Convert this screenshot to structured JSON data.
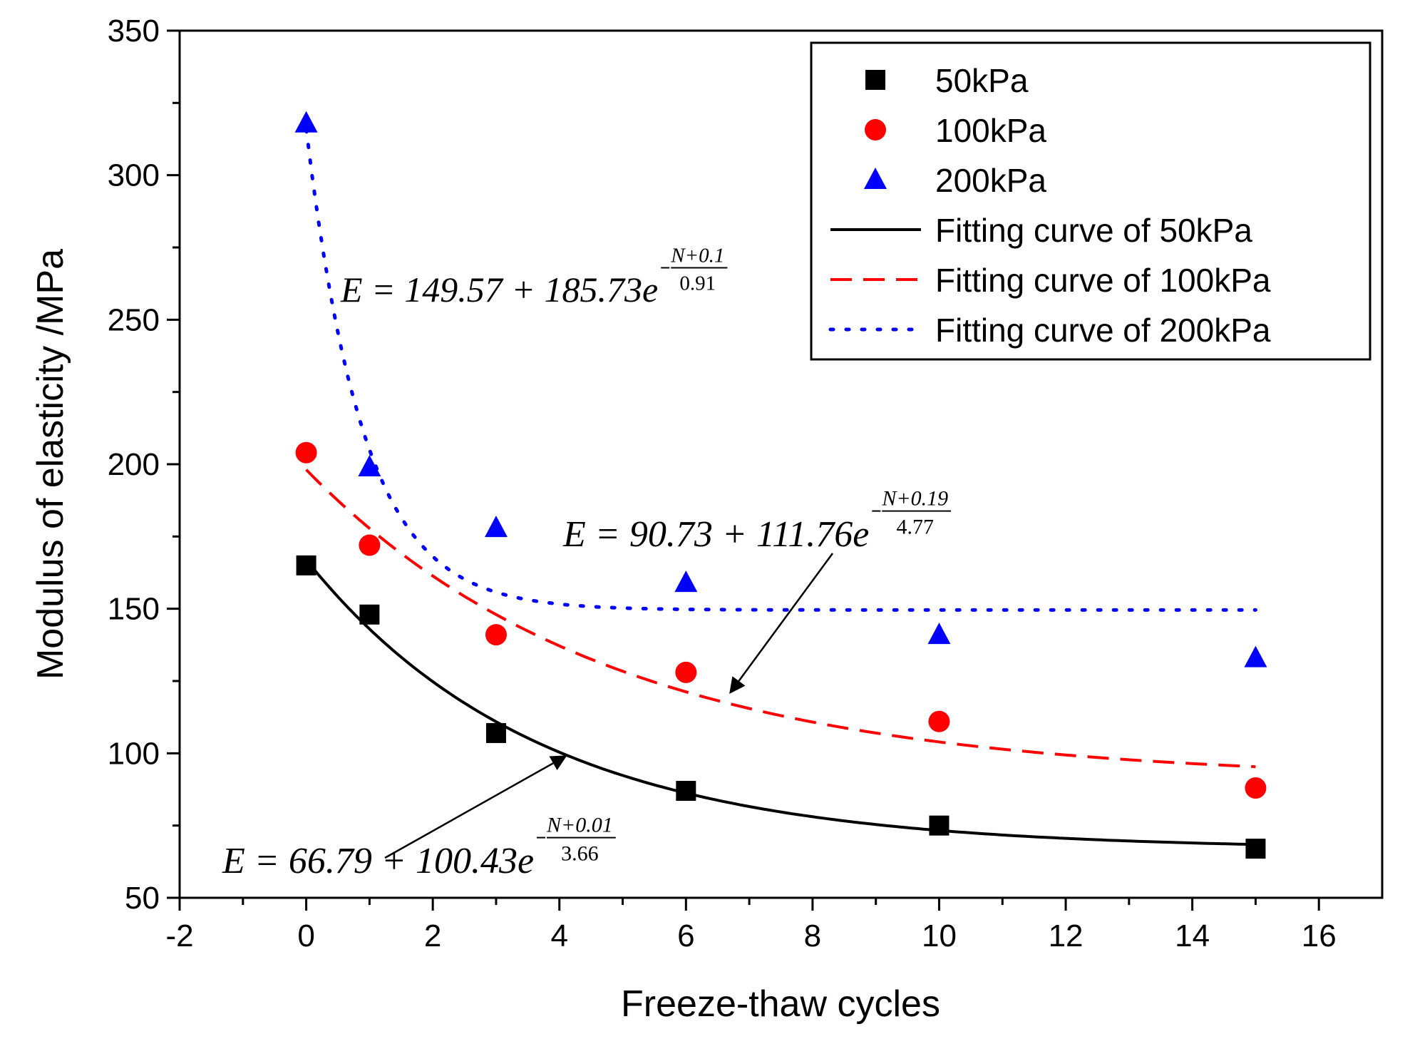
{
  "chart_data": {
    "type": "scatter",
    "title": "",
    "xlabel": "Freeze-thaw cycles",
    "ylabel": "Modulus of elasticity /MPa",
    "xlim": [
      -2,
      17
    ],
    "ylim": [
      50,
      350
    ],
    "xticks": [
      -2,
      0,
      2,
      4,
      6,
      8,
      10,
      12,
      14,
      16
    ],
    "yticks": [
      50,
      100,
      150,
      200,
      250,
      300,
      350
    ],
    "grid": false,
    "legend_position": "top-right",
    "series": [
      {
        "name": "50kPa",
        "marker": "square",
        "color": "#000000",
        "x": [
          0,
          1,
          3,
          6,
          10,
          15
        ],
        "y": [
          165,
          148,
          107,
          87,
          75,
          67
        ]
      },
      {
        "name": "100kPa",
        "marker": "circle",
        "color": "#ff0000",
        "x": [
          0,
          1,
          3,
          6,
          10,
          15
        ],
        "y": [
          204,
          172,
          141,
          128,
          111,
          88
        ]
      },
      {
        "name": "200kPa",
        "marker": "triangle",
        "color": "#0000ff",
        "x": [
          0,
          1,
          3,
          6,
          10,
          15
        ],
        "y": [
          318,
          199,
          178,
          159,
          141,
          133
        ]
      }
    ],
    "fits": [
      {
        "name": "Fitting curve of 50kPa",
        "style": "solid",
        "color": "#000000",
        "a": 66.79,
        "b": 100.43,
        "c": 0.01,
        "d": 3.66,
        "x_range": [
          0,
          15
        ]
      },
      {
        "name": "Fitting curve of 100kPa",
        "style": "dashed",
        "color": "#ff0000",
        "a": 90.73,
        "b": 111.76,
        "c": 0.19,
        "d": 4.77,
        "x_range": [
          0,
          15
        ]
      },
      {
        "name": "Fitting curve of 200kPa",
        "style": "dotted",
        "color": "#0000ff",
        "a": 149.57,
        "b": 185.73,
        "c": 0.1,
        "d": 0.91,
        "x_range": [
          0,
          15
        ]
      }
    ],
    "annotations": [
      {
        "id": "eq200",
        "main": "E = 149.57 + 185.73e",
        "exp_num": "N+0.1",
        "exp_den": "0.91",
        "arrow": false
      },
      {
        "id": "eq100",
        "main": "E = 90.73 + 111.76e",
        "exp_num": "N+0.19",
        "exp_den": "4.77",
        "arrow": true,
        "arrow_to": [
          6.7,
          121
        ]
      },
      {
        "id": "eq50",
        "main": "E = 66.79 + 100.43e",
        "exp_num": "N+0.01",
        "exp_den": "3.66",
        "arrow": true,
        "arrow_to": [
          4.1,
          99
        ]
      }
    ]
  }
}
